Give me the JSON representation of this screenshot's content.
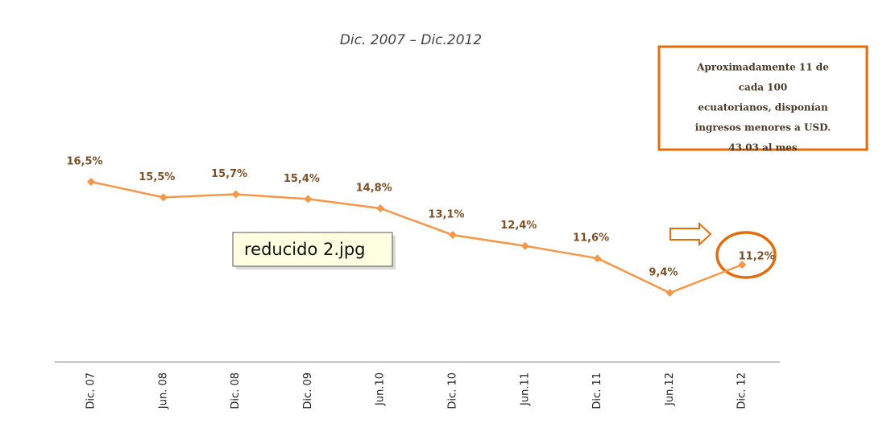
{
  "chart_data": {
    "type": "line",
    "title": "Dic. 2007 – Dic.2012",
    "categories": [
      "Dic. 07",
      "Jun. 08",
      "Dic. 08",
      "Dic. 09",
      "Jun.10",
      "Dic. 10",
      "Jun.11",
      "Dic. 11",
      "Jun.12",
      "Dic. 12"
    ],
    "values": [
      16.5,
      15.5,
      15.7,
      15.4,
      14.8,
      13.1,
      12.4,
      11.6,
      9.4,
      11.2
    ],
    "value_labels": [
      "16,5%",
      "15,5%",
      "15,7%",
      "15,4%",
      "14,8%",
      "13,1%",
      "12,4%",
      "11,6%",
      "9,4%",
      "11,2%"
    ],
    "color": "#f79646",
    "annotation": [
      "Aproximadamente 11 de",
      "cada 100",
      "ecuatorianos, disponían",
      "ingresos menores a USD.",
      "43.03 al mes"
    ]
  },
  "tooltip": "reducido 2.jpg"
}
